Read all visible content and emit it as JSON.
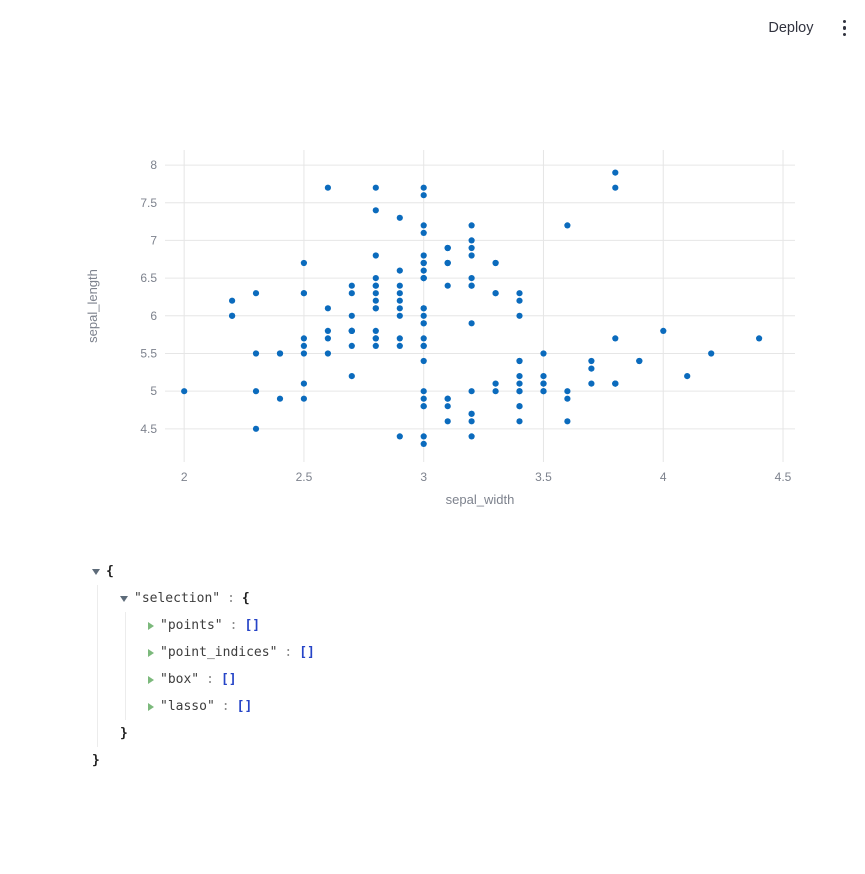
{
  "header": {
    "deploy_label": "Deploy"
  },
  "chart_data": {
    "type": "scatter",
    "title": "",
    "xlabel": "sepal_width",
    "ylabel": "sepal_length",
    "x_ticks": [
      2,
      2.5,
      3,
      3.5,
      4,
      4.5
    ],
    "y_ticks": [
      4.5,
      5,
      5.5,
      6,
      6.5,
      7,
      7.5,
      8
    ],
    "x_range": [
      1.92,
      4.55
    ],
    "y_range": [
      4.06,
      8.2
    ],
    "grid": true,
    "legend": false,
    "point_color": "#0b6bbd",
    "points": [
      [
        3.5,
        5.1
      ],
      [
        3.0,
        4.9
      ],
      [
        3.2,
        4.7
      ],
      [
        3.1,
        4.6
      ],
      [
        3.6,
        5.0
      ],
      [
        3.9,
        5.4
      ],
      [
        3.4,
        4.6
      ],
      [
        3.4,
        5.0
      ],
      [
        2.9,
        4.4
      ],
      [
        3.1,
        4.9
      ],
      [
        3.7,
        5.4
      ],
      [
        3.4,
        4.8
      ],
      [
        3.0,
        4.8
      ],
      [
        3.0,
        4.3
      ],
      [
        4.0,
        5.8
      ],
      [
        4.4,
        5.7
      ],
      [
        3.9,
        5.4
      ],
      [
        3.5,
        5.1
      ],
      [
        3.8,
        5.7
      ],
      [
        3.8,
        5.1
      ],
      [
        3.4,
        5.4
      ],
      [
        3.7,
        5.1
      ],
      [
        3.6,
        4.6
      ],
      [
        3.3,
        5.1
      ],
      [
        3.4,
        4.8
      ],
      [
        3.0,
        5.0
      ],
      [
        3.4,
        5.0
      ],
      [
        3.5,
        5.2
      ],
      [
        3.4,
        5.2
      ],
      [
        3.2,
        4.7
      ],
      [
        3.1,
        4.8
      ],
      [
        3.4,
        5.4
      ],
      [
        4.1,
        5.2
      ],
      [
        4.2,
        5.5
      ],
      [
        3.1,
        4.9
      ],
      [
        3.2,
        5.0
      ],
      [
        3.5,
        5.5
      ],
      [
        3.6,
        4.9
      ],
      [
        3.0,
        4.4
      ],
      [
        3.4,
        5.1
      ],
      [
        3.5,
        5.0
      ],
      [
        2.3,
        4.5
      ],
      [
        3.2,
        4.4
      ],
      [
        3.5,
        5.0
      ],
      [
        3.8,
        5.1
      ],
      [
        3.0,
        4.8
      ],
      [
        3.8,
        5.1
      ],
      [
        3.2,
        4.6
      ],
      [
        3.7,
        5.3
      ],
      [
        3.3,
        5.0
      ],
      [
        3.2,
        7.0
      ],
      [
        3.2,
        6.4
      ],
      [
        3.1,
        6.9
      ],
      [
        2.3,
        5.5
      ],
      [
        2.8,
        6.5
      ],
      [
        2.8,
        5.7
      ],
      [
        3.3,
        6.3
      ],
      [
        2.4,
        4.9
      ],
      [
        2.9,
        6.6
      ],
      [
        2.7,
        5.2
      ],
      [
        2.0,
        5.0
      ],
      [
        3.0,
        5.9
      ],
      [
        2.2,
        6.0
      ],
      [
        2.9,
        6.1
      ],
      [
        2.9,
        5.6
      ],
      [
        3.1,
        6.7
      ],
      [
        3.0,
        5.6
      ],
      [
        2.7,
        5.8
      ],
      [
        2.2,
        6.2
      ],
      [
        2.5,
        5.6
      ],
      [
        3.2,
        5.9
      ],
      [
        2.8,
        6.1
      ],
      [
        2.5,
        6.3
      ],
      [
        2.8,
        6.1
      ],
      [
        2.9,
        6.4
      ],
      [
        3.0,
        6.6
      ],
      [
        2.8,
        6.8
      ],
      [
        3.0,
        6.7
      ],
      [
        2.9,
        6.0
      ],
      [
        2.6,
        5.7
      ],
      [
        2.4,
        5.5
      ],
      [
        2.4,
        5.5
      ],
      [
        2.7,
        5.8
      ],
      [
        2.7,
        6.0
      ],
      [
        3.0,
        5.4
      ],
      [
        3.4,
        6.0
      ],
      [
        3.1,
        6.7
      ],
      [
        2.3,
        6.3
      ],
      [
        3.0,
        5.6
      ],
      [
        2.5,
        5.5
      ],
      [
        2.6,
        5.5
      ],
      [
        3.0,
        6.1
      ],
      [
        2.6,
        5.8
      ],
      [
        2.3,
        5.0
      ],
      [
        2.7,
        5.6
      ],
      [
        3.0,
        5.7
      ],
      [
        2.9,
        5.7
      ],
      [
        2.9,
        6.2
      ],
      [
        2.5,
        5.1
      ],
      [
        2.8,
        5.7
      ],
      [
        3.3,
        6.3
      ],
      [
        2.7,
        5.8
      ],
      [
        3.0,
        7.1
      ],
      [
        2.9,
        6.3
      ],
      [
        3.0,
        6.5
      ],
      [
        3.0,
        7.6
      ],
      [
        2.5,
        4.9
      ],
      [
        2.9,
        7.3
      ],
      [
        2.5,
        6.7
      ],
      [
        3.6,
        7.2
      ],
      [
        3.2,
        6.5
      ],
      [
        2.7,
        6.4
      ],
      [
        3.0,
        6.8
      ],
      [
        2.5,
        5.7
      ],
      [
        2.8,
        5.8
      ],
      [
        3.2,
        6.4
      ],
      [
        3.0,
        6.5
      ],
      [
        3.8,
        7.7
      ],
      [
        2.6,
        7.7
      ],
      [
        2.2,
        6.0
      ],
      [
        3.2,
        6.9
      ],
      [
        2.8,
        5.6
      ],
      [
        2.8,
        7.7
      ],
      [
        2.7,
        6.3
      ],
      [
        3.3,
        6.7
      ],
      [
        3.2,
        7.2
      ],
      [
        2.8,
        6.2
      ],
      [
        3.0,
        6.1
      ],
      [
        2.8,
        6.4
      ],
      [
        3.0,
        7.2
      ],
      [
        2.8,
        7.4
      ],
      [
        3.8,
        7.9
      ],
      [
        2.8,
        6.4
      ],
      [
        2.8,
        6.3
      ],
      [
        2.6,
        6.1
      ],
      [
        3.0,
        7.7
      ],
      [
        3.4,
        6.3
      ],
      [
        3.1,
        6.4
      ],
      [
        3.0,
        6.0
      ],
      [
        3.1,
        6.9
      ],
      [
        3.1,
        6.7
      ],
      [
        3.1,
        6.9
      ],
      [
        2.7,
        5.8
      ],
      [
        3.2,
        6.8
      ],
      [
        3.3,
        6.7
      ],
      [
        3.0,
        6.7
      ],
      [
        2.5,
        6.3
      ],
      [
        3.0,
        6.5
      ],
      [
        3.4,
        6.2
      ],
      [
        3.0,
        5.9
      ]
    ]
  },
  "json_viewer": {
    "root": {
      "open": "{",
      "close": "}"
    },
    "selection": {
      "key": "\"selection\"",
      "colon": ":",
      "open": "{",
      "close": "}"
    },
    "items": [
      {
        "key": "\"points\"",
        "colon": ":",
        "value": "[]"
      },
      {
        "key": "\"point_indices\"",
        "colon": ":",
        "value": "[]"
      },
      {
        "key": "\"box\"",
        "colon": ":",
        "value": "[]"
      },
      {
        "key": "\"lasso\"",
        "colon": ":",
        "value": "[]"
      }
    ]
  }
}
